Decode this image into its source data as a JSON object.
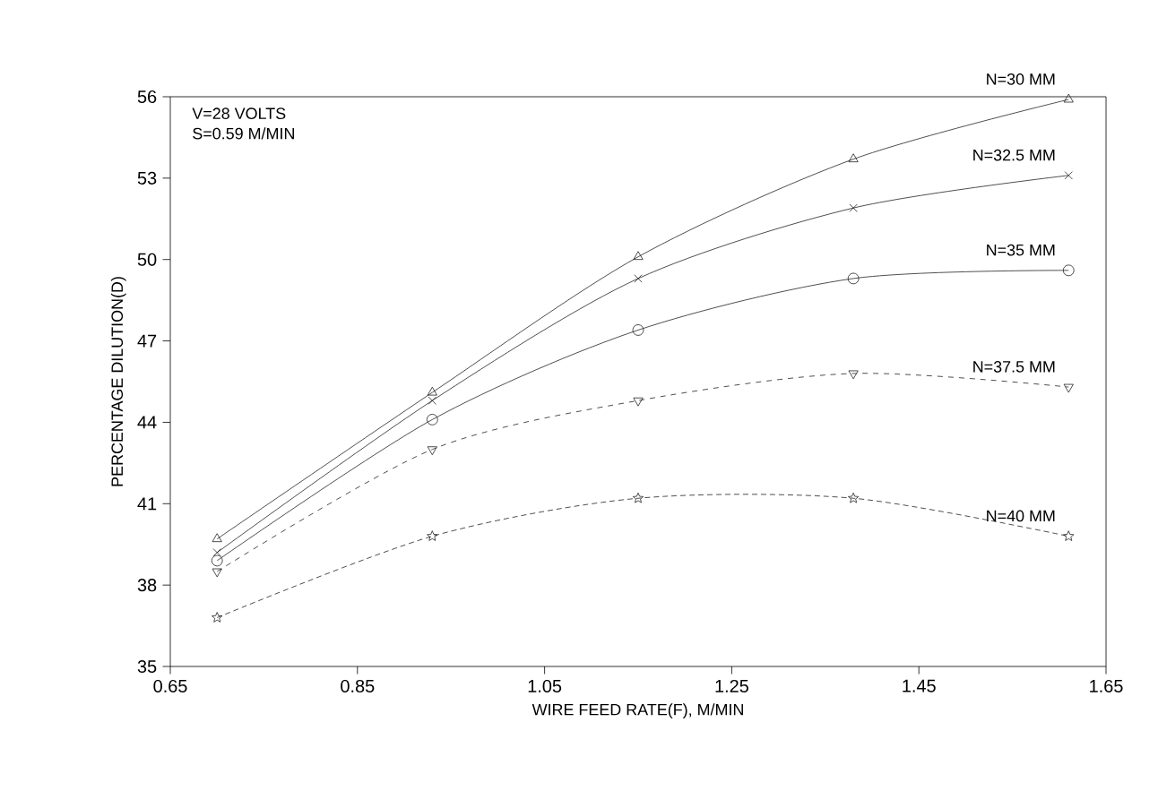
{
  "chart_data": {
    "type": "line",
    "xlabel": "WIRE FEED RATE(F), M/MIN",
    "ylabel": "PERCENTAGE DILUTION(D)",
    "annotations": [
      "V=28 VOLTS",
      "S=0.59 M/MIN"
    ],
    "xlim": [
      0.65,
      1.65
    ],
    "xticks": [
      0.65,
      0.85,
      1.05,
      1.25,
      1.45,
      1.65
    ],
    "ylim": [
      35,
      56
    ],
    "yticks": [
      35,
      38,
      41,
      44,
      47,
      50,
      53,
      56
    ],
    "x": [
      0.7,
      0.93,
      1.15,
      1.38,
      1.61
    ],
    "series": [
      {
        "name": "N=30 MM",
        "color": "#222222",
        "marker": "triangle",
        "line_style": "solid",
        "values": [
          39.7,
          45.1,
          50.1,
          53.7,
          55.9
        ]
      },
      {
        "name": "N=32.5 MM",
        "color": "#222222",
        "marker": "cross",
        "line_style": "solid",
        "values": [
          39.2,
          44.8,
          49.3,
          51.9,
          53.1
        ]
      },
      {
        "name": "N=35 MM",
        "color": "#222222",
        "marker": "circle",
        "line_style": "solid",
        "values": [
          38.9,
          44.1,
          47.4,
          49.3,
          49.6
        ]
      },
      {
        "name": "N=37.5 MM",
        "color": "#222222",
        "marker": "triangle down",
        "line_style": "dashed",
        "values": [
          38.5,
          43.0,
          44.8,
          45.8,
          45.3
        ]
      },
      {
        "name": "N=40 MM",
        "color": "#222222",
        "marker": "star",
        "line_style": "dotted",
        "values": [
          36.8,
          39.8,
          41.2,
          41.2,
          39.8
        ]
      }
    ]
  }
}
